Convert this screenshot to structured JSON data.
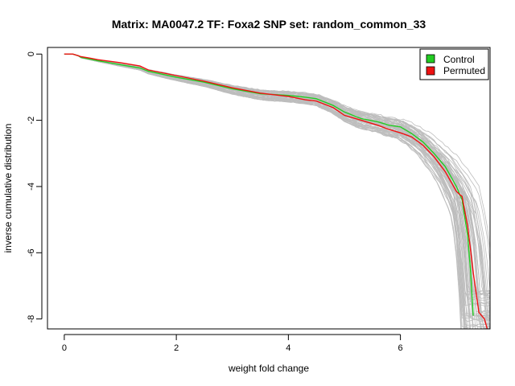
{
  "chart_data": {
    "type": "line",
    "title": "Matrix: MA0047.2 TF: Foxa2 SNP set: random_common_33",
    "xlabel": "weight fold change",
    "ylabel": "inverse cumulative distribution",
    "xlim": [
      -0.3,
      7.6
    ],
    "ylim": [
      -8.3,
      0.2
    ],
    "x_ticks": [
      0,
      2,
      4,
      6
    ],
    "y_ticks": [
      0,
      -2,
      -4,
      -6,
      -8
    ],
    "grid": false,
    "legend_position": "top-right",
    "colors": {
      "control": "#22cc22",
      "permuted": "#ee1111",
      "background_runs": "#bdbdbd"
    },
    "background_runs": {
      "count": 60,
      "color": "#bdbdbd",
      "description_visible": false
    },
    "series": [
      {
        "name": "Control",
        "color": "#22cc22",
        "x": [
          0,
          0.15,
          0.25,
          0.3,
          0.45,
          0.6,
          1.0,
          1.35,
          1.5,
          2.0,
          2.5,
          3.0,
          3.5,
          4.0,
          4.3,
          4.5,
          4.8,
          5.0,
          5.3,
          5.6,
          5.8,
          6.0,
          6.2,
          6.4,
          6.6,
          6.8,
          7.0,
          7.1,
          7.2,
          7.25,
          7.3
        ],
        "y": [
          0,
          0,
          -0.05,
          -0.1,
          -0.15,
          -0.2,
          -0.32,
          -0.42,
          -0.52,
          -0.7,
          -0.85,
          -1.05,
          -1.2,
          -1.25,
          -1.3,
          -1.35,
          -1.55,
          -1.75,
          -1.95,
          -2.05,
          -2.15,
          -2.2,
          -2.4,
          -2.65,
          -3.0,
          -3.4,
          -4.0,
          -4.4,
          -5.5,
          -6.5,
          -7.9
        ]
      },
      {
        "name": "Permuted",
        "color": "#ee1111",
        "x": [
          0,
          0.15,
          0.25,
          0.3,
          0.45,
          0.6,
          1.0,
          1.35,
          1.5,
          2.0,
          2.5,
          3.0,
          3.5,
          4.0,
          4.3,
          4.5,
          4.8,
          5.0,
          5.3,
          5.6,
          5.8,
          6.0,
          6.2,
          6.4,
          6.6,
          6.8,
          7.0,
          7.1,
          7.2,
          7.3,
          7.4,
          7.5,
          7.55
        ],
        "y": [
          0,
          0,
          -0.05,
          -0.08,
          -0.12,
          -0.17,
          -0.26,
          -0.36,
          -0.48,
          -0.65,
          -0.82,
          -1.02,
          -1.18,
          -1.28,
          -1.38,
          -1.42,
          -1.62,
          -1.85,
          -2.0,
          -2.15,
          -2.28,
          -2.38,
          -2.5,
          -2.75,
          -3.1,
          -3.55,
          -4.15,
          -4.3,
          -5.2,
          -6.6,
          -7.8,
          -8.0,
          -8.3
        ]
      }
    ]
  }
}
